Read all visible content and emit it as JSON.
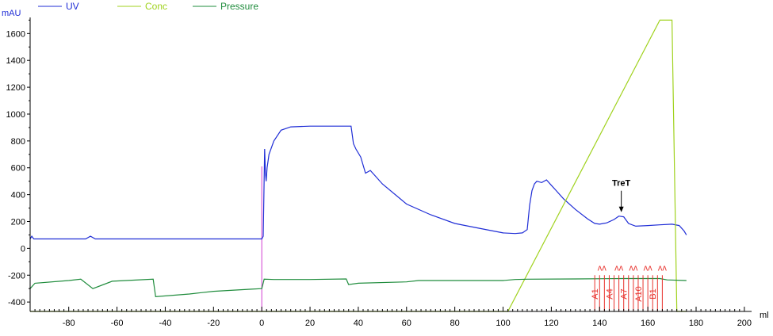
{
  "chart_data": {
    "type": "line",
    "xlabel": "ml",
    "ylabel": "mAU",
    "xlim": [
      -96,
      203
    ],
    "ylim": [
      -470,
      1720
    ],
    "x_ticks": [
      -80,
      -60,
      -40,
      -20,
      0,
      20,
      40,
      60,
      80,
      100,
      120,
      140,
      160,
      180,
      200
    ],
    "y_ticks": [
      -400,
      -200,
      0,
      200,
      400,
      600,
      800,
      1000,
      1200,
      1400,
      1600
    ],
    "colors": {
      "uv": "#1f2dd6",
      "conc": "#a0d21e",
      "pressure": "#1f8c3c",
      "fractions": "#e8322d",
      "injection": "#d23cd2",
      "axis": "#000000"
    },
    "legend": {
      "placement": "top-left",
      "entries": [
        {
          "name": "UV",
          "color": "#1f2dd6"
        },
        {
          "name": "Conc",
          "color": "#a0d21e"
        },
        {
          "name": "Pressure",
          "color": "#1f8c3c"
        }
      ]
    },
    "series": [
      {
        "name": "UV",
        "x": [
          -96,
          -95.3,
          -94.5,
          -73,
          -71,
          -69,
          -50,
          -30,
          0,
          0.6,
          1.2,
          1.5,
          1.8,
          2.2,
          3,
          5,
          8,
          12,
          20,
          30,
          37,
          38,
          39,
          41,
          43,
          45,
          47,
          50,
          60,
          70,
          80,
          90,
          100,
          105,
          108,
          110,
          111,
          112,
          113,
          114,
          116,
          118,
          120,
          122,
          125,
          130,
          135,
          138,
          140,
          143,
          146,
          148,
          150,
          152,
          155,
          160,
          165,
          170,
          173,
          175,
          176
        ],
        "y": [
          70,
          90,
          70,
          70,
          90,
          70,
          70,
          70,
          70,
          90,
          740,
          570,
          500,
          600,
          700,
          800,
          880,
          905,
          910,
          910,
          910,
          780,
          740,
          680,
          560,
          580,
          540,
          480,
          330,
          250,
          185,
          150,
          115,
          110,
          115,
          140,
          320,
          430,
          480,
          500,
          490,
          510,
          470,
          430,
          370,
          290,
          220,
          185,
          180,
          190,
          215,
          240,
          235,
          185,
          165,
          170,
          175,
          180,
          170,
          130,
          100
        ]
      },
      {
        "name": "Conc",
        "x": [
          -96,
          102,
          165,
          170,
          172,
          176
        ],
        "y": [
          -470,
          -470,
          1700,
          1700,
          -470,
          -470
        ]
      },
      {
        "name": "Pressure",
        "x": [
          -96,
          -94,
          -80,
          -75,
          -70,
          -62,
          -45,
          -44,
          -30,
          -20,
          -5,
          0,
          1,
          5,
          20,
          35,
          36,
          40,
          60,
          65,
          80,
          100,
          105,
          110,
          130,
          150,
          165,
          168,
          176
        ],
        "y": [
          -300,
          -260,
          -240,
          -230,
          -300,
          -245,
          -230,
          -360,
          -340,
          -320,
          -305,
          -300,
          -230,
          -232,
          -232,
          -228,
          -270,
          -260,
          -250,
          -240,
          -240,
          -240,
          -232,
          -230,
          -228,
          -225,
          -225,
          -235,
          -240
        ]
      }
    ],
    "fractions": [
      {
        "x": 138,
        "label": "A1"
      },
      {
        "x": 140,
        "label": ""
      },
      {
        "x": 142,
        "label": ""
      },
      {
        "x": 144,
        "label": "A4"
      },
      {
        "x": 146,
        "label": ""
      },
      {
        "x": 148,
        "label": ""
      },
      {
        "x": 150,
        "label": "A7"
      },
      {
        "x": 152,
        "label": ""
      },
      {
        "x": 154,
        "label": ""
      },
      {
        "x": 156,
        "label": "A10"
      },
      {
        "x": 158,
        "label": ""
      },
      {
        "x": 160,
        "label": ""
      },
      {
        "x": 162,
        "label": "B1"
      },
      {
        "x": 164,
        "label": ""
      },
      {
        "x": 166,
        "label": ""
      }
    ],
    "fraction_markers": [
      {
        "x": 141,
        "text": "ʌʌ"
      },
      {
        "x": 148,
        "text": "ʌʌ"
      },
      {
        "x": 154,
        "text": "ʌʌ"
      },
      {
        "x": 160,
        "text": "ʌʌ"
      },
      {
        "x": 166,
        "text": "ʌʌ"
      }
    ],
    "injection_x": 0,
    "injection_top": 610,
    "annotation": {
      "text": "TreT",
      "x": 149,
      "y": 240
    }
  }
}
